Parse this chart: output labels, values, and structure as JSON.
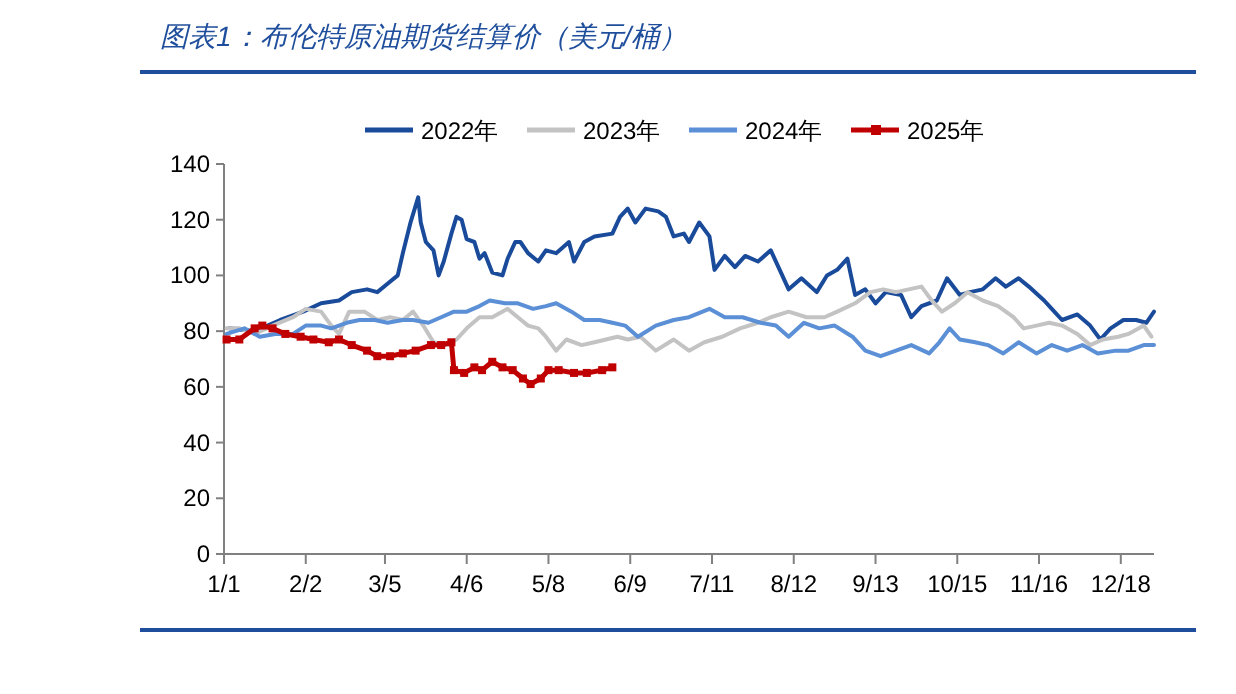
{
  "chart_data": {
    "type": "line",
    "title": "图表1：布伦特原油期货结算价（美元/桶）",
    "xlim": [
      "--01-01",
      "--12-31"
    ],
    "ylim": [
      0,
      140
    ],
    "yticks": [
      0,
      20,
      40,
      60,
      80,
      100,
      120,
      140
    ],
    "xticks": [
      {
        "value": "--01-01",
        "label": "1/1"
      },
      {
        "value": "--02-02",
        "label": "2/2"
      },
      {
        "value": "--03-05",
        "label": "3/5"
      },
      {
        "value": "--04-06",
        "label": "4/6"
      },
      {
        "value": "--05-08",
        "label": "5/8"
      },
      {
        "value": "--06-09",
        "label": "6/9"
      },
      {
        "value": "--07-11",
        "label": "7/11"
      },
      {
        "value": "--08-12",
        "label": "8/12"
      },
      {
        "value": "--09-13",
        "label": "9/13"
      },
      {
        "value": "--10-15",
        "label": "10/15"
      },
      {
        "value": "--11-16",
        "label": "11/16"
      },
      {
        "value": "--12-18",
        "label": "12/18"
      }
    ],
    "legend": "top",
    "series": [
      {
        "name": "2022年",
        "color": "#1a4b9b",
        "marker": "none",
        "x": [
          "--01-03",
          "--01-13",
          "--01-23",
          "--02-01",
          "--02-08",
          "--02-15",
          "--02-20",
          "--02-26",
          "--03-02",
          "--03-06",
          "--03-10",
          "--03-12",
          "--03-15",
          "--03-18",
          "--03-19",
          "--03-21",
          "--03-24",
          "--03-26",
          "--03-28",
          "--03-31",
          "--04-02",
          "--04-04",
          "--04-06",
          "--04-09",
          "--04-11",
          "--04-13",
          "--04-16",
          "--04-20",
          "--04-22",
          "--04-25",
          "--04-27",
          "--04-30",
          "--05-04",
          "--05-07",
          "--05-11",
          "--05-16",
          "--05-18",
          "--05-22",
          "--05-26",
          "--06-02",
          "--06-05",
          "--06-08",
          "--06-11",
          "--06-15",
          "--06-20",
          "--06-23",
          "--06-26",
          "--06-30",
          "--07-02",
          "--07-06",
          "--07-10",
          "--07-12",
          "--07-16",
          "--07-20",
          "--07-24",
          "--07-29",
          "--08-03",
          "--08-07",
          "--08-10",
          "--08-15",
          "--08-21",
          "--08-25",
          "--08-29",
          "--09-02",
          "--09-05",
          "--09-09",
          "--09-13",
          "--09-17",
          "--09-23",
          "--09-27",
          "--10-01",
          "--10-07",
          "--10-11",
          "--10-16",
          "--10-20",
          "--10-25",
          "--10-30",
          "--11-03",
          "--11-08",
          "--11-12",
          "--11-18",
          "--11-21",
          "--11-25",
          "--12-01",
          "--12-06",
          "--12-10",
          "--12-14",
          "--12-19",
          "--12-24",
          "--12-28",
          "--12-31"
        ],
        "values": [
          81,
          80,
          84,
          87,
          90,
          91,
          94,
          95,
          94,
          97,
          100,
          108,
          119,
          128,
          119,
          112,
          109,
          100,
          105,
          115,
          121,
          120,
          113,
          112,
          106,
          108,
          101,
          100,
          106,
          112,
          112,
          108,
          105,
          109,
          108,
          112,
          105,
          112,
          114,
          115,
          121,
          124,
          119,
          124,
          123,
          121,
          114,
          115,
          112,
          119,
          114,
          102,
          107,
          103,
          107,
          105,
          109,
          101,
          95,
          99,
          94,
          100,
          102,
          106,
          93,
          95,
          90,
          94,
          93,
          85,
          89,
          91,
          99,
          93,
          94,
          95,
          99,
          96,
          99,
          96,
          91,
          88,
          84,
          86,
          82,
          77,
          81,
          84,
          84,
          83,
          87
        ]
      },
      {
        "name": "2023年",
        "color": "#c3c3c3",
        "marker": "none",
        "x": [
          "--01-02",
          "--01-07",
          "--01-13",
          "--01-20",
          "--01-28",
          "--02-02",
          "--02-08",
          "--02-12",
          "--02-15",
          "--02-19",
          "--02-25",
          "--03-02",
          "--03-07",
          "--03-12",
          "--03-16",
          "--03-20",
          "--03-24",
          "--03-29",
          "--04-02",
          "--04-06",
          "--04-11",
          "--04-16",
          "--04-22",
          "--04-26",
          "--04-30",
          "--05-04",
          "--05-07",
          "--05-11",
          "--05-15",
          "--05-21",
          "--05-26",
          "--06-04",
          "--06-08",
          "--06-13",
          "--06-19",
          "--06-26",
          "--07-02",
          "--07-08",
          "--07-15",
          "--07-22",
          "--07-29",
          "--08-03",
          "--08-10",
          "--08-17",
          "--08-24",
          "--08-29",
          "--09-05",
          "--09-11",
          "--09-16",
          "--09-21",
          "--09-26",
          "--10-01",
          "--10-05",
          "--10-09",
          "--10-14",
          "--10-19",
          "--10-25",
          "--10-31",
          "--11-06",
          "--11-10",
          "--11-15",
          "--11-20",
          "--11-25",
          "--12-01",
          "--12-06",
          "--12-11",
          "--12-17",
          "--12-21",
          "--12-27",
          "--12-30"
        ],
        "values": [
          81,
          81,
          79,
          82,
          85,
          88,
          87,
          82,
          79,
          87,
          87,
          84,
          85,
          84,
          87,
          82,
          76,
          75,
          77,
          81,
          85,
          85,
          88,
          85,
          82,
          81,
          78,
          73,
          77,
          75,
          76,
          78,
          77,
          78,
          73,
          77,
          73,
          76,
          78,
          81,
          83,
          85,
          87,
          85,
          85,
          87,
          90,
          94,
          95,
          94,
          95,
          96,
          91,
          87,
          90,
          94,
          91,
          89,
          85,
          81,
          82,
          83,
          82,
          79,
          75,
          77,
          78,
          79,
          82,
          78
        ]
      },
      {
        "name": "2024年",
        "color": "#5b8fd6",
        "marker": "none",
        "x": [
          "--01-02",
          "--01-09",
          "--01-15",
          "--01-21",
          "--01-28",
          "--02-02",
          "--02-08",
          "--02-12",
          "--02-18",
          "--02-23",
          "--03-01",
          "--03-06",
          "--03-12",
          "--03-16",
          "--03-22",
          "--03-27",
          "--04-01",
          "--04-06",
          "--04-11",
          "--04-15",
          "--04-21",
          "--04-26",
          "--05-02",
          "--05-07",
          "--05-11",
          "--05-17",
          "--05-22",
          "--05-28",
          "--06-02",
          "--06-07",
          "--06-12",
          "--06-19",
          "--06-26",
          "--07-02",
          "--07-10",
          "--07-16",
          "--07-23",
          "--07-30",
          "--08-05",
          "--08-10",
          "--08-16",
          "--08-22",
          "--08-28",
          "--09-04",
          "--09-09",
          "--09-15",
          "--09-21",
          "--09-27",
          "--10-04",
          "--10-08",
          "--10-12",
          "--10-16",
          "--10-22",
          "--10-27",
          "--11-02",
          "--11-08",
          "--11-15",
          "--11-21",
          "--11-27",
          "--12-03",
          "--12-09",
          "--12-16",
          "--12-21",
          "--12-27",
          "--12-31"
        ],
        "values": [
          79,
          81,
          78,
          79,
          79,
          82,
          82,
          81,
          83,
          84,
          84,
          83,
          84,
          84,
          83,
          85,
          87,
          87,
          89,
          91,
          90,
          90,
          88,
          89,
          90,
          87,
          84,
          84,
          83,
          82,
          78,
          82,
          84,
          85,
          88,
          85,
          85,
          83,
          82,
          78,
          83,
          81,
          82,
          78,
          73,
          71,
          73,
          75,
          72,
          76,
          81,
          77,
          76,
          75,
          72,
          76,
          72,
          75,
          73,
          75,
          72,
          73,
          73,
          75,
          75
        ]
      },
      {
        "name": "2025年",
        "color": "#c00000",
        "marker": "square",
        "x": [
          "--01-02",
          "--01-07",
          "--01-13",
          "--01-16",
          "--01-20",
          "--01-25",
          "--01-31",
          "--02-05",
          "--02-11",
          "--02-15",
          "--02-20",
          "--02-26",
          "--03-02",
          "--03-07",
          "--03-12",
          "--03-17",
          "--03-23",
          "--03-27",
          "--03-31",
          "--04-01",
          "--04-05",
          "--04-09",
          "--04-12",
          "--04-16",
          "--04-20",
          "--04-24",
          "--04-28",
          "--05-01",
          "--05-05",
          "--05-08",
          "--05-12",
          "--05-18",
          "--05-23",
          "--05-29",
          "--06-02"
        ],
        "values": [
          77,
          77,
          81,
          82,
          81,
          79,
          78,
          77,
          76,
          77,
          75,
          73,
          71,
          71,
          72,
          73,
          75,
          75,
          76,
          66,
          65,
          67,
          66,
          69,
          67,
          66,
          63,
          61,
          63,
          66,
          66,
          65,
          65,
          66,
          67
        ]
      }
    ]
  }
}
